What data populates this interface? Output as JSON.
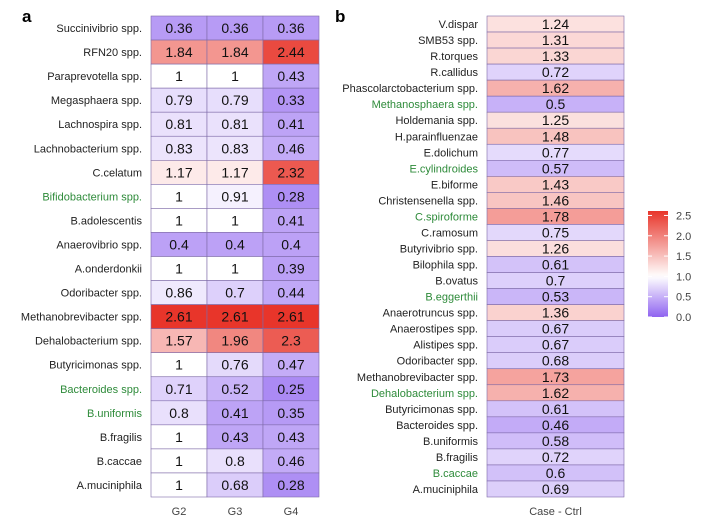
{
  "chart_data": [
    {
      "type": "heatmap",
      "panel_label": "a",
      "columns": [
        "G2",
        "G3",
        "G4"
      ],
      "rows": [
        {
          "label": "Succinivibrio spp.",
          "highlight": false,
          "values": [
            0.36,
            0.36,
            0.36
          ]
        },
        {
          "label": "RFN20 spp.",
          "highlight": false,
          "values": [
            1.84,
            1.84,
            2.44
          ]
        },
        {
          "label": "Paraprevotella spp.",
          "highlight": false,
          "values": [
            1,
            1,
            0.43
          ]
        },
        {
          "label": "Megasphaera spp.",
          "highlight": false,
          "values": [
            0.79,
            0.79,
            0.33
          ]
        },
        {
          "label": "Lachnospira spp.",
          "highlight": false,
          "values": [
            0.81,
            0.81,
            0.41
          ]
        },
        {
          "label": "Lachnobacterium spp.",
          "highlight": false,
          "values": [
            0.83,
            0.83,
            0.46
          ]
        },
        {
          "label": "C.celatum",
          "highlight": false,
          "values": [
            1.17,
            1.17,
            2.32
          ]
        },
        {
          "label": "Bifidobacterium spp.",
          "highlight": true,
          "values": [
            1,
            0.91,
            0.28
          ]
        },
        {
          "label": "B.adolescentis",
          "highlight": false,
          "values": [
            1,
            1,
            0.41
          ]
        },
        {
          "label": "Anaerovibrio spp.",
          "highlight": false,
          "values": [
            0.4,
            0.4,
            0.4
          ]
        },
        {
          "label": "A.onderdonkii",
          "highlight": false,
          "values": [
            1,
            1,
            0.39
          ]
        },
        {
          "label": "Odoribacter spp.",
          "highlight": false,
          "values": [
            0.86,
            0.7,
            0.44
          ]
        },
        {
          "label": "Methanobrevibacter spp.",
          "highlight": false,
          "values": [
            2.61,
            2.61,
            2.61
          ]
        },
        {
          "label": "Dehalobacterium spp.",
          "highlight": false,
          "values": [
            1.57,
            1.96,
            2.3
          ]
        },
        {
          "label": "Butyricimonas spp.",
          "highlight": false,
          "values": [
            1,
            0.76,
            0.47
          ]
        },
        {
          "label": "Bacteroides spp.",
          "highlight": true,
          "values": [
            0.71,
            0.52,
            0.25
          ]
        },
        {
          "label": "B.uniformis",
          "highlight": true,
          "values": [
            0.8,
            0.41,
            0.35
          ]
        },
        {
          "label": "B.fragilis",
          "highlight": false,
          "values": [
            1,
            0.43,
            0.43
          ]
        },
        {
          "label": "B.caccae",
          "highlight": false,
          "values": [
            1,
            0.8,
            0.46
          ]
        },
        {
          "label": "A.muciniphila",
          "highlight": false,
          "values": [
            1,
            0.68,
            0.28
          ]
        }
      ]
    },
    {
      "type": "heatmap",
      "panel_label": "b",
      "columns": [
        "Case - Ctrl"
      ],
      "rows": [
        {
          "label": "V.dispar",
          "highlight": false,
          "values": [
            1.24
          ]
        },
        {
          "label": "SMB53 spp.",
          "highlight": false,
          "values": [
            1.31
          ]
        },
        {
          "label": "R.torques",
          "highlight": false,
          "values": [
            1.33
          ]
        },
        {
          "label": "R.callidus",
          "highlight": false,
          "values": [
            0.72
          ]
        },
        {
          "label": "Phascolarctobacterium spp.",
          "highlight": false,
          "values": [
            1.62
          ]
        },
        {
          "label": "Methanosphaera spp.",
          "highlight": true,
          "values": [
            0.5
          ]
        },
        {
          "label": "Holdemania spp.",
          "highlight": false,
          "values": [
            1.25
          ]
        },
        {
          "label": "H.parainfluenzae",
          "highlight": false,
          "values": [
            1.48
          ]
        },
        {
          "label": "E.dolichum",
          "highlight": false,
          "values": [
            0.77
          ]
        },
        {
          "label": "E.cylindroides",
          "highlight": true,
          "values": [
            0.57
          ]
        },
        {
          "label": "E.biforme",
          "highlight": false,
          "values": [
            1.43
          ]
        },
        {
          "label": "Christensenella spp.",
          "highlight": false,
          "values": [
            1.46
          ]
        },
        {
          "label": "C.spiroforme",
          "highlight": true,
          "values": [
            1.78
          ]
        },
        {
          "label": "C.ramosum",
          "highlight": false,
          "values": [
            0.75
          ]
        },
        {
          "label": "Butyrivibrio spp.",
          "highlight": false,
          "values": [
            1.26
          ]
        },
        {
          "label": "Bilophila spp.",
          "highlight": false,
          "values": [
            0.61
          ]
        },
        {
          "label": "B.ovatus",
          "highlight": false,
          "values": [
            0.7
          ]
        },
        {
          "label": "B.eggerthii",
          "highlight": true,
          "values": [
            0.53
          ]
        },
        {
          "label": "Anaerotruncus spp.",
          "highlight": false,
          "values": [
            1.36
          ]
        },
        {
          "label": "Anaerostipes spp.",
          "highlight": false,
          "values": [
            0.67
          ]
        },
        {
          "label": "Alistipes spp.",
          "highlight": false,
          "values": [
            0.67
          ]
        },
        {
          "label": "Odoribacter spp.",
          "highlight": false,
          "values": [
            0.68
          ]
        },
        {
          "label": "Methanobrevibacter spp.",
          "highlight": false,
          "values": [
            1.73
          ]
        },
        {
          "label": "Dehalobacterium spp.",
          "highlight": true,
          "values": [
            1.62
          ]
        },
        {
          "label": "Butyricimonas spp.",
          "highlight": false,
          "values": [
            0.61
          ]
        },
        {
          "label": "Bacteroides spp.",
          "highlight": false,
          "values": [
            0.46
          ]
        },
        {
          "label": "B.uniformis",
          "highlight": false,
          "values": [
            0.58
          ]
        },
        {
          "label": "B.fragilis",
          "highlight": false,
          "values": [
            0.72
          ]
        },
        {
          "label": "B.caccae",
          "highlight": true,
          "values": [
            0.6
          ]
        },
        {
          "label": "A.muciniphila",
          "highlight": false,
          "values": [
            0.69
          ]
        }
      ]
    }
  ],
  "legend": {
    "ticks": [
      "2.5",
      "2.0",
      "1.5",
      "1.0",
      "0.5",
      "0.0"
    ],
    "range": [
      0,
      2.61
    ],
    "midpoint": 1
  },
  "colors": {
    "low": "#8F63F0",
    "mid": "#FFFFFF",
    "high": "#E8352A",
    "highlight_label": "#2E8B3A",
    "label": "#222222",
    "cell_border": "#7E6AA8"
  }
}
